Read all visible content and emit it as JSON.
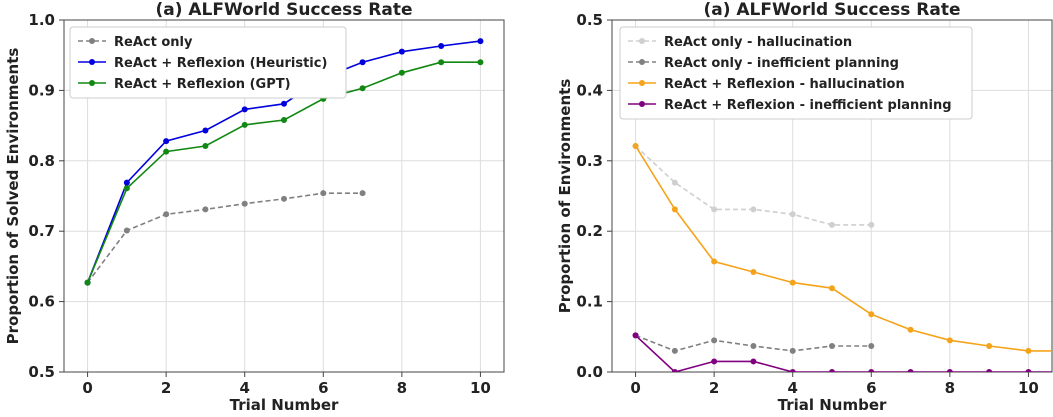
{
  "chart_data": [
    {
      "type": "line",
      "title": "(a) ALFWorld Success Rate",
      "xlabel": "Trial Number",
      "ylabel": "Proportion of Solved Environments",
      "xlim": [
        -0.6,
        10.6
      ],
      "ylim": [
        0.5,
        1.0
      ],
      "xticks": [
        0,
        2,
        4,
        6,
        8,
        10
      ],
      "xtick_labels": [
        "0",
        "2",
        "4",
        "6",
        "8",
        "10"
      ],
      "yticks": [
        0.5,
        0.6,
        0.7,
        0.8,
        0.9,
        1.0
      ],
      "ytick_labels": [
        "0.5",
        "0.6",
        "0.7",
        "0.8",
        "0.9",
        "1.0"
      ],
      "grid": true,
      "legend": "top-left",
      "series": [
        {
          "name": "ReAct only",
          "color": "#808080",
          "dashed": true,
          "x": [
            0,
            1,
            2,
            3,
            4,
            5,
            6,
            7
          ],
          "y": [
            0.627,
            0.701,
            0.724,
            0.731,
            0.739,
            0.746,
            0.754,
            0.754
          ]
        },
        {
          "name": "ReAct + Reflexion (Heuristic)",
          "color": "#0000dd",
          "dashed": false,
          "x": [
            0,
            1,
            2,
            3,
            4,
            5,
            6,
            7,
            8,
            9,
            10
          ],
          "y": [
            0.627,
            0.769,
            0.828,
            0.843,
            0.873,
            0.881,
            0.918,
            0.94,
            0.955,
            0.963,
            0.97
          ]
        },
        {
          "name": "ReAct + Reflexion (GPT)",
          "color": "#118811",
          "dashed": false,
          "x": [
            0,
            1,
            2,
            3,
            4,
            5,
            6,
            7,
            8,
            9,
            10
          ],
          "y": [
            0.627,
            0.761,
            0.813,
            0.821,
            0.851,
            0.858,
            0.888,
            0.903,
            0.925,
            0.94,
            0.94
          ]
        }
      ]
    },
    {
      "type": "line",
      "title": "(a) ALFWorld Success Rate",
      "xlabel": "Trial Number",
      "ylabel": "Proportion of Environments",
      "xlim": [
        -0.6,
        10.6
      ],
      "ylim": [
        0.0,
        0.5
      ],
      "xticks": [
        0,
        2,
        4,
        6,
        8,
        10
      ],
      "xtick_labels": [
        "0",
        "2",
        "4",
        "6",
        "8",
        "10"
      ],
      "yticks": [
        0.0,
        0.1,
        0.2,
        0.3,
        0.4,
        0.5
      ],
      "ytick_labels": [
        "0.0",
        "0.1",
        "0.2",
        "0.3",
        "0.4",
        "0.5"
      ],
      "grid": true,
      "legend": "top-left",
      "series": [
        {
          "name": "ReAct only - hallucination",
          "color": "#cfcfcf",
          "dashed": true,
          "x": [
            0,
            1,
            2,
            3,
            4,
            5,
            6
          ],
          "y": [
            0.321,
            0.269,
            0.231,
            0.231,
            0.224,
            0.209,
            0.209
          ]
        },
        {
          "name": "ReAct only - inefficient planning",
          "color": "#808080",
          "dashed": true,
          "x": [
            0,
            1,
            2,
            3,
            4,
            5,
            6
          ],
          "y": [
            0.052,
            0.03,
            0.045,
            0.037,
            0.03,
            0.037,
            0.037
          ]
        },
        {
          "name": "ReAct + Reflexion - hallucination",
          "color": "#f5a31a",
          "dashed": false,
          "x": [
            0,
            1,
            2,
            3,
            4,
            5,
            6,
            7,
            8,
            9,
            10,
            11
          ],
          "y": [
            0.321,
            0.231,
            0.157,
            0.142,
            0.127,
            0.119,
            0.082,
            0.06,
            0.045,
            0.037,
            0.03,
            0.03
          ]
        },
        {
          "name": "ReAct + Reflexion - inefficient planning",
          "color": "#800080",
          "dashed": false,
          "x": [
            0,
            1,
            2,
            3,
            4,
            5,
            6,
            7,
            8,
            9,
            10,
            11
          ],
          "y": [
            0.052,
            0.0,
            0.015,
            0.015,
            0.0,
            0.0,
            0.0,
            0.0,
            0.0,
            0.0,
            0.0,
            0.0
          ]
        }
      ]
    }
  ]
}
